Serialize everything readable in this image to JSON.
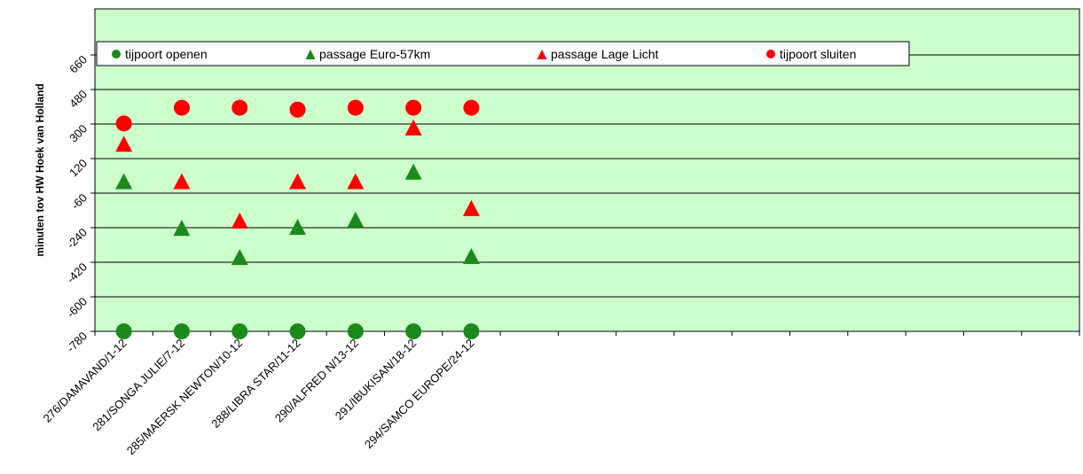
{
  "chart_data": {
    "type": "scatter",
    "title": "",
    "ylabel": "minuten tov HW Hoek van Holland",
    "ylim": [
      -780,
      900
    ],
    "y_ticks": [
      -780,
      -600,
      -420,
      -240,
      -60,
      120,
      300,
      480,
      660
    ],
    "grid": true,
    "legend_position": "top",
    "categories": [
      "276/DAMAVAND/1-12",
      "281/SONGA JULIE/7-12",
      "285/MAERSK NEWTON/10-12",
      "288/LIBRA STAR/11-12",
      "290/ALFRED N/13-12",
      "291/IBUKISAN/18-12",
      "294/SAMCO EUROPE/24-12"
    ],
    "empty_slots": 10,
    "series": [
      {
        "name": "tijpoort openen",
        "marker": "circle",
        "color": "#1a8a1a",
        "values": [
          -780,
          -780,
          -780,
          -780,
          -780,
          -780,
          -780
        ]
      },
      {
        "name": "passage Euro-57km",
        "marker": "triangle",
        "color": "#1a8a1a",
        "values": [
          0,
          -243,
          -395,
          -238,
          -200,
          50,
          -390
        ]
      },
      {
        "name": "passage Lage Licht",
        "marker": "triangle",
        "color": "#ff0000",
        "values": [
          195,
          0,
          -205,
          0,
          0,
          280,
          -140
        ]
      },
      {
        "name": "tijpoort sluiten",
        "marker": "circle",
        "color": "#ff0000",
        "values": [
          303,
          385,
          385,
          375,
          385,
          385,
          385
        ]
      }
    ],
    "colors": {
      "plot_bg": "#ccffcc",
      "grid": "#000000"
    }
  }
}
